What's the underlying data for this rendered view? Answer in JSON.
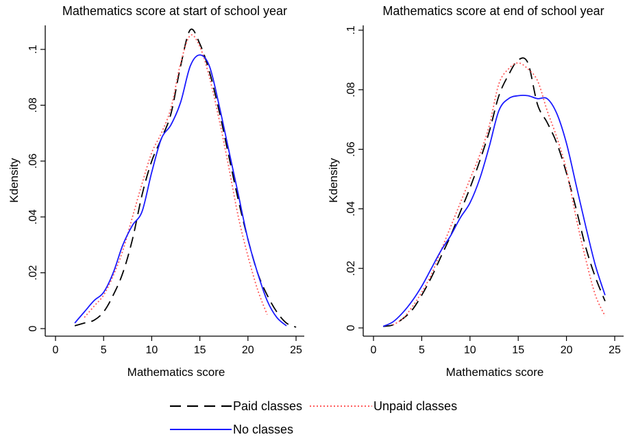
{
  "chart_data": [
    {
      "type": "line",
      "title": "Mathematics score at start of school year",
      "xlabel": "Mathematics score",
      "ylabel": "Kdensity",
      "xlim": [
        0,
        25
      ],
      "ylim": [
        0,
        0.105
      ],
      "xticks": [
        0,
        5,
        10,
        15,
        20,
        25
      ],
      "yticks": [
        0,
        0.02,
        0.04,
        0.06,
        0.08,
        0.1
      ],
      "ytick_labels": [
        "0",
        ".02",
        ".04",
        ".06",
        ".08",
        ".1"
      ],
      "grid": false,
      "series": [
        {
          "name": "Paid classes",
          "color": "#000000",
          "style": "dashed",
          "x": [
            2,
            3,
            4,
            5,
            6,
            7,
            8,
            9,
            10,
            11,
            12,
            13,
            14,
            15,
            16,
            17,
            18,
            19,
            20,
            21,
            22,
            23,
            24,
            25
          ],
          "y": [
            0.001,
            0.002,
            0.003,
            0.006,
            0.012,
            0.02,
            0.032,
            0.048,
            0.06,
            0.068,
            0.077,
            0.094,
            0.107,
            0.102,
            0.092,
            0.078,
            0.062,
            0.046,
            0.032,
            0.02,
            0.012,
            0.006,
            0.002,
            0.0005
          ]
        },
        {
          "name": "Unpaid classes",
          "color": "#ff5a5a",
          "style": "dotted",
          "x": [
            3,
            4,
            5,
            6,
            7,
            8,
            9,
            10,
            11,
            12,
            13,
            14,
            15,
            16,
            17,
            18,
            19,
            20,
            21,
            22
          ],
          "y": [
            0.004,
            0.008,
            0.012,
            0.019,
            0.028,
            0.04,
            0.052,
            0.063,
            0.07,
            0.079,
            0.095,
            0.105,
            0.101,
            0.09,
            0.075,
            0.058,
            0.04,
            0.026,
            0.014,
            0.005
          ]
        },
        {
          "name": "No classes",
          "color": "#1a1aff",
          "style": "solid",
          "x": [
            2,
            3,
            4,
            5,
            6,
            7,
            8,
            9,
            10,
            11,
            12,
            13,
            14,
            15,
            16,
            17,
            18,
            19,
            20,
            21,
            22,
            23,
            24
          ],
          "y": [
            0.002,
            0.006,
            0.01,
            0.013,
            0.02,
            0.03,
            0.037,
            0.042,
            0.056,
            0.068,
            0.073,
            0.081,
            0.094,
            0.098,
            0.094,
            0.08,
            0.064,
            0.048,
            0.032,
            0.02,
            0.01,
            0.004,
            0.001
          ]
        }
      ]
    },
    {
      "type": "line",
      "title": "Mathematics score at end of school year",
      "xlabel": "Mathematics score",
      "ylabel": "Kdensity",
      "xlim": [
        0,
        25
      ],
      "ylim": [
        0,
        0.1
      ],
      "xticks": [
        0,
        5,
        10,
        15,
        20,
        25
      ],
      "yticks": [
        0,
        0.02,
        0.04,
        0.06,
        0.08,
        0.1
      ],
      "ytick_labels": [
        "0",
        ".02",
        ".04",
        ".06",
        ".08",
        ".1"
      ],
      "grid": false,
      "series": [
        {
          "name": "Paid classes",
          "color": "#000000",
          "style": "dashed",
          "x": [
            1,
            2,
            3,
            4,
            5,
            6,
            7,
            8,
            9,
            10,
            11,
            12,
            13,
            14,
            15,
            16,
            17,
            18,
            19,
            20,
            21,
            22,
            23,
            24
          ],
          "y": [
            0.0005,
            0.001,
            0.003,
            0.006,
            0.011,
            0.017,
            0.024,
            0.031,
            0.039,
            0.047,
            0.056,
            0.066,
            0.078,
            0.085,
            0.09,
            0.089,
            0.075,
            0.069,
            0.062,
            0.052,
            0.04,
            0.027,
            0.017,
            0.009
          ]
        },
        {
          "name": "Unpaid classes",
          "color": "#ff5a5a",
          "style": "dotted",
          "x": [
            2,
            3,
            4,
            5,
            6,
            7,
            8,
            9,
            10,
            11,
            12,
            13,
            14,
            15,
            16,
            17,
            18,
            19,
            20,
            21,
            22,
            23,
            24
          ],
          "y": [
            0.001,
            0.003,
            0.007,
            0.012,
            0.018,
            0.026,
            0.034,
            0.042,
            0.05,
            0.058,
            0.068,
            0.082,
            0.087,
            0.089,
            0.087,
            0.083,
            0.073,
            0.064,
            0.053,
            0.037,
            0.023,
            0.011,
            0.004
          ]
        },
        {
          "name": "No classes",
          "color": "#1a1aff",
          "style": "solid",
          "x": [
            1,
            2,
            3,
            4,
            5,
            6,
            7,
            8,
            9,
            10,
            11,
            12,
            13,
            14,
            15,
            16,
            17,
            18,
            19,
            20,
            21,
            22,
            23,
            24
          ],
          "y": [
            0.0005,
            0.002,
            0.005,
            0.009,
            0.014,
            0.02,
            0.026,
            0.031,
            0.037,
            0.042,
            0.05,
            0.061,
            0.073,
            0.077,
            0.078,
            0.078,
            0.077,
            0.077,
            0.072,
            0.062,
            0.048,
            0.034,
            0.021,
            0.011
          ]
        }
      ]
    }
  ],
  "legend": [
    {
      "label": "Paid classes",
      "color": "#000000",
      "style": "dashed"
    },
    {
      "label": "Unpaid classes",
      "color": "#ff5a5a",
      "style": "dotted"
    },
    {
      "label": "No classes",
      "color": "#1a1aff",
      "style": "solid"
    }
  ]
}
